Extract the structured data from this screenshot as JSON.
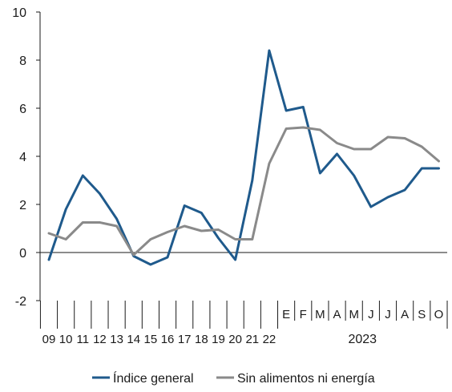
{
  "chart_data": {
    "type": "line",
    "title": "",
    "xlabel": "",
    "ylabel": "",
    "ylim": [
      -2,
      10
    ],
    "yticks": [
      -2,
      0,
      2,
      4,
      6,
      8,
      10
    ],
    "grid": false,
    "legend_position": "bottom",
    "categories": [
      "09",
      "10",
      "11",
      "12",
      "13",
      "14",
      "15",
      "16",
      "17",
      "18",
      "19",
      "20",
      "21",
      "22",
      "E",
      "F",
      "M",
      "A",
      "M",
      "J",
      "J",
      "A",
      "S",
      "O"
    ],
    "year_group": {
      "label": "2023",
      "from_index": 14,
      "to_index": 23
    },
    "series": [
      {
        "name": "Índice general",
        "color": "#1f5a8c",
        "values": [
          -0.3,
          1.8,
          3.2,
          2.45,
          1.4,
          -0.15,
          -0.5,
          -0.2,
          1.95,
          1.65,
          0.6,
          -0.3,
          3.0,
          8.4,
          5.9,
          6.05,
          3.3,
          4.1,
          3.2,
          1.9,
          2.3,
          2.6,
          3.5,
          3.5
        ]
      },
      {
        "name": "Sin alimentos ni energía",
        "color": "#8a8a8a",
        "values": [
          0.8,
          0.55,
          1.25,
          1.25,
          1.1,
          -0.1,
          0.55,
          0.85,
          1.1,
          0.9,
          0.95,
          0.55,
          0.55,
          3.7,
          5.15,
          5.2,
          5.1,
          4.55,
          4.3,
          4.3,
          4.8,
          4.75,
          4.4,
          3.8
        ]
      }
    ]
  }
}
